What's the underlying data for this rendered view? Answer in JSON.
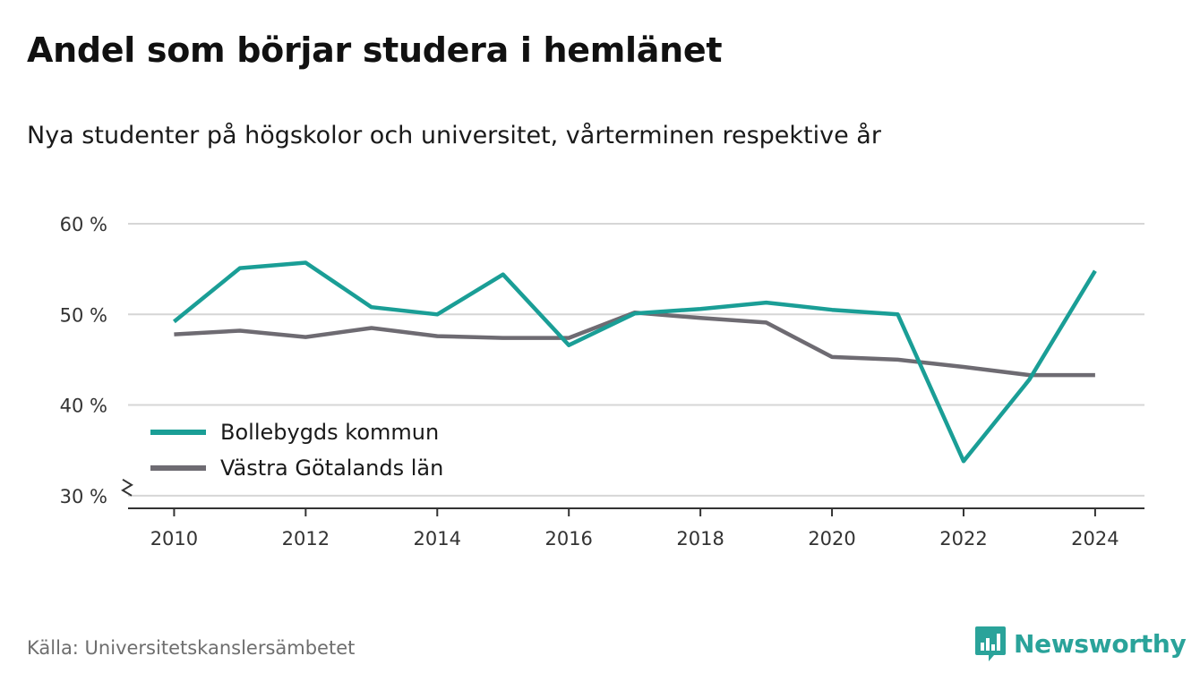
{
  "header": {
    "title": "Andel som börjar studera i hemlänet",
    "subtitle": "Nya studenter på högskolor och universitet, vårterminen respektive år"
  },
  "footer": {
    "source": "Källa: Universitetskanslersämbetet",
    "brand": "Newsworthy",
    "brand_icon": "bar-chart-badge-icon",
    "brand_color": "#2aa39a"
  },
  "chart_data": {
    "type": "line",
    "x": [
      2010,
      2011,
      2012,
      2013,
      2014,
      2015,
      2016,
      2017,
      2018,
      2019,
      2020,
      2021,
      2022,
      2023,
      2024
    ],
    "series": [
      {
        "name": "Bollebygds kommun",
        "color": "#1a9e96",
        "values": [
          49.2,
          55.1,
          55.7,
          50.8,
          50.0,
          54.4,
          46.6,
          50.1,
          50.6,
          51.3,
          50.5,
          50.0,
          33.8,
          42.8,
          54.8
        ]
      },
      {
        "name": "Västra Götalands län",
        "color": "#6e6b72",
        "values": [
          47.8,
          48.2,
          47.5,
          48.5,
          47.6,
          47.4,
          47.4,
          50.2,
          49.6,
          49.1,
          45.3,
          45.0,
          44.2,
          43.3,
          43.3
        ]
      }
    ],
    "y_ticks": [
      {
        "value": 30,
        "label": "30 %"
      },
      {
        "value": 40,
        "label": "40 %"
      },
      {
        "value": 50,
        "label": "50 %"
      },
      {
        "value": 60,
        "label": "60 %"
      }
    ],
    "x_ticks": [
      {
        "value": 2010,
        "label": "2010"
      },
      {
        "value": 2012,
        "label": "2012"
      },
      {
        "value": 2014,
        "label": "2014"
      },
      {
        "value": 2016,
        "label": "2016"
      },
      {
        "value": 2018,
        "label": "2018"
      },
      {
        "value": 2020,
        "label": "2020"
      },
      {
        "value": 2022,
        "label": "2022"
      },
      {
        "value": 2024,
        "label": "2024"
      }
    ],
    "xlim": [
      2009.3,
      2024.75
    ],
    "ylim": [
      28.6,
      60
    ],
    "y_axis_break": true,
    "grid": "horizontal",
    "legend": "bottom-left"
  }
}
